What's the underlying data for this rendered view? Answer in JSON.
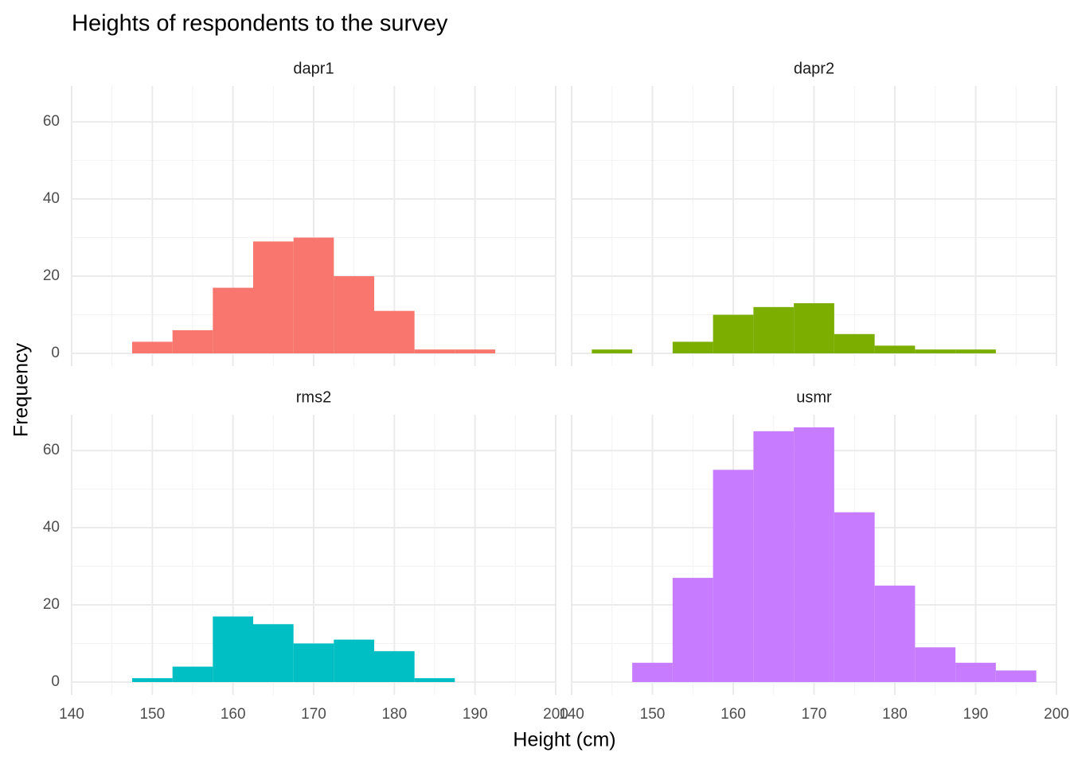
{
  "figure": {
    "title": "Heights of respondents to the survey",
    "x_label": "Height (cm)",
    "y_label": "Frequency"
  },
  "chart_data": [
    {
      "type": "histogram",
      "title": "dapr1",
      "color": "#F8766D",
      "bins": [
        147.5,
        152.5,
        157.5,
        162.5,
        167.5,
        172.5,
        177.5,
        182.5,
        187.5,
        192.5
      ],
      "values": [
        3,
        6,
        17,
        29,
        30,
        20,
        11,
        1,
        1
      ],
      "xlim": [
        140,
        200
      ],
      "ylim": [
        -3.3,
        69.3
      ],
      "xticks": [
        140,
        150,
        160,
        170,
        180,
        190,
        200
      ],
      "yticks": [
        0,
        20,
        40,
        60
      ],
      "grid": true
    },
    {
      "type": "histogram",
      "title": "dapr2",
      "color": "#7CAE00",
      "bins": [
        142.5,
        147.5,
        152.5,
        157.5,
        162.5,
        167.5,
        172.5,
        177.5,
        182.5,
        187.5,
        192.5
      ],
      "values": [
        1,
        0,
        3,
        10,
        12,
        13,
        5,
        2,
        1,
        1
      ],
      "xlim": [
        140,
        200
      ],
      "ylim": [
        -3.3,
        69.3
      ],
      "xticks": [
        140,
        150,
        160,
        170,
        180,
        190,
        200
      ],
      "yticks": [
        0,
        20,
        40,
        60
      ],
      "grid": true
    },
    {
      "type": "histogram",
      "title": "rms2",
      "color": "#00BFC4",
      "bins": [
        147.5,
        152.5,
        157.5,
        162.5,
        167.5,
        172.5,
        177.5,
        182.5,
        187.5
      ],
      "values": [
        1,
        4,
        17,
        15,
        10,
        11,
        8,
        1
      ],
      "xlim": [
        140,
        200
      ],
      "ylim": [
        -3.3,
        69.3
      ],
      "xticks": [
        140,
        150,
        160,
        170,
        180,
        190,
        200
      ],
      "yticks": [
        0,
        20,
        40,
        60
      ],
      "grid": true
    },
    {
      "type": "histogram",
      "title": "usmr",
      "color": "#C77CFF",
      "bins": [
        147.5,
        152.5,
        157.5,
        162.5,
        167.5,
        172.5,
        177.5,
        182.5,
        187.5,
        192.5,
        197.5
      ],
      "values": [
        5,
        27,
        55,
        65,
        66,
        44,
        25,
        9,
        5,
        3
      ],
      "xlim": [
        140,
        200
      ],
      "ylim": [
        -3.3,
        69.3
      ],
      "xticks": [
        140,
        150,
        160,
        170,
        180,
        190,
        200
      ],
      "yticks": [
        0,
        20,
        40,
        60
      ],
      "grid": true
    }
  ]
}
